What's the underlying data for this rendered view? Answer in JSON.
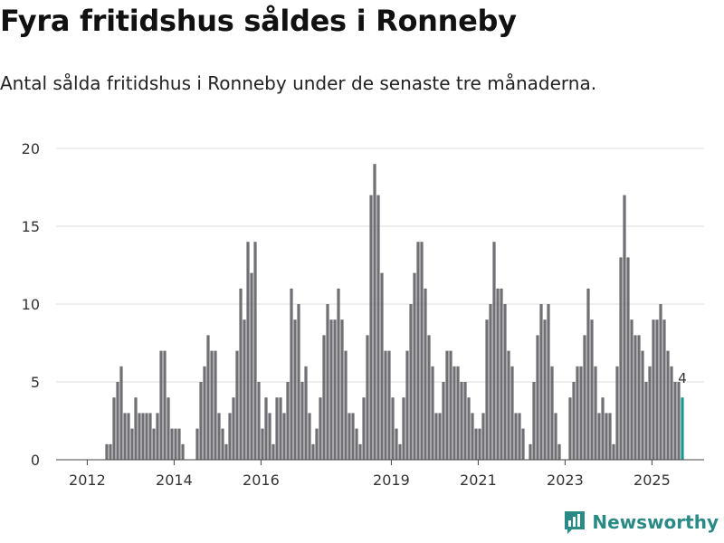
{
  "header": {
    "title": "Fyra fritidshus såldes i Ronneby",
    "subtitle": "Antal sålda fritidshus i Ronneby under de senaste tre månaderna."
  },
  "branding": {
    "name": "Newsworthy"
  },
  "colors": {
    "bar": "#6f6e73",
    "highlight": "#1a9991",
    "grid": "#dddddd",
    "axis": "#444444",
    "brand": "#2a8a86"
  },
  "chart_data": {
    "type": "bar",
    "title": "Fyra fritidshus såldes i Ronneby",
    "subtitle": "Antal sålda fritidshus i Ronneby under de senaste tre månaderna.",
    "xlabel": "",
    "ylabel": "",
    "ylim": [
      0,
      20
    ],
    "yticks": [
      0,
      5,
      10,
      15,
      20
    ],
    "xticks": [
      {
        "label": "2012",
        "index": 0
      },
      {
        "label": "2014",
        "index": 24
      },
      {
        "label": "2016",
        "index": 48
      },
      {
        "label": "2019",
        "index": 84
      },
      {
        "label": "2021",
        "index": 108
      },
      {
        "label": "2023",
        "index": 132
      },
      {
        "label": "2025",
        "index": 156
      }
    ],
    "period_start": "2012-01",
    "grid": true,
    "highlight_last": true,
    "last_value_label": "4",
    "values": [
      0,
      0,
      0,
      0,
      0,
      1,
      1,
      4,
      5,
      6,
      3,
      3,
      2,
      4,
      3,
      3,
      3,
      3,
      2,
      3,
      7,
      7,
      4,
      2,
      2,
      2,
      1,
      0,
      0,
      0,
      2,
      5,
      6,
      8,
      7,
      7,
      3,
      2,
      1,
      3,
      4,
      7,
      11,
      9,
      14,
      12,
      14,
      5,
      2,
      4,
      3,
      1,
      4,
      4,
      3,
      5,
      11,
      9,
      10,
      5,
      6,
      3,
      1,
      2,
      4,
      8,
      10,
      9,
      9,
      11,
      9,
      7,
      3,
      3,
      2,
      1,
      4,
      8,
      17,
      19,
      17,
      12,
      7,
      7,
      4,
      2,
      1,
      4,
      7,
      10,
      12,
      14,
      14,
      11,
      8,
      6,
      3,
      3,
      5,
      7,
      7,
      6,
      6,
      5,
      5,
      4,
      3,
      2,
      2,
      3,
      9,
      10,
      14,
      11,
      11,
      10,
      7,
      6,
      3,
      3,
      2,
      0,
      1,
      5,
      8,
      10,
      9,
      10,
      6,
      3,
      1,
      0,
      0,
      4,
      5,
      6,
      6,
      8,
      11,
      9,
      6,
      3,
      4,
      3,
      3,
      1,
      6,
      13,
      17,
      13,
      9,
      8,
      8,
      7,
      5,
      6,
      9,
      9,
      10,
      9,
      7,
      6,
      5,
      5,
      4
    ]
  }
}
